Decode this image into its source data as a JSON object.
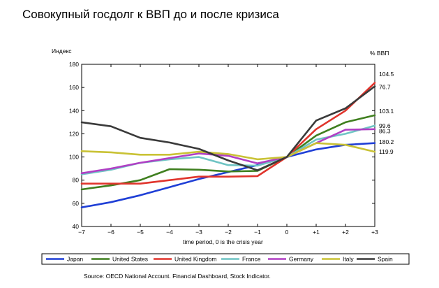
{
  "chart_data": {
    "type": "line",
    "title": "Совокупный госдолг к ВВП до и после кризиса",
    "ylabel": "Индекс",
    "right_label": "% ВВП",
    "xlabel": "time period, 0 is the crisis year",
    "source": "Source: OECD National Account.  Financial Dashboard, Stock Indicator.",
    "x": [
      -7,
      -6,
      -5,
      -4,
      -3,
      -2,
      -1,
      0,
      1,
      2,
      3
    ],
    "x_tick_labels": [
      "−7",
      "−6",
      "−5",
      "−4",
      "−3",
      "−2",
      "−1",
      "0",
      "+1",
      "+2",
      "+3"
    ],
    "ylim": [
      40,
      180
    ],
    "y_ticks": [
      40,
      60,
      80,
      100,
      120,
      140,
      160,
      180
    ],
    "grid": false,
    "legend_position": "bottom",
    "series": [
      {
        "name": "Japan",
        "color": "#1f3fd6",
        "values": [
          56.5,
          61,
          67,
          74,
          81,
          87,
          93,
          100,
          106.5,
          110.5,
          112
        ]
      },
      {
        "name": "United States",
        "color": "#3f7f1f",
        "values": [
          72,
          75.5,
          80,
          89.5,
          89,
          87.5,
          88,
          100,
          118.5,
          130,
          136
        ]
      },
      {
        "name": "United Kingdom",
        "color": "#e0342c",
        "values": [
          77,
          77,
          77,
          80,
          83,
          83,
          83.5,
          100,
          124,
          140,
          164
        ]
      },
      {
        "name": "France",
        "color": "#6fc4c4",
        "values": [
          85,
          89,
          95,
          98,
          100,
          93,
          92.5,
          100,
          115,
          120,
          127
        ]
      },
      {
        "name": "Germany",
        "color": "#b03fc4",
        "values": [
          86,
          90,
          95,
          99,
          103,
          101,
          94.5,
          100,
          112,
          123.5,
          124
        ]
      },
      {
        "name": "Italy",
        "color": "#c9c235",
        "values": [
          105,
          104,
          102,
          102,
          104.5,
          102.5,
          98,
          100,
          112,
          110.5,
          104.5
        ]
      },
      {
        "name": "Spain",
        "color": "#3a3a3a",
        "values": [
          130,
          126.5,
          116.5,
          112.5,
          107,
          97,
          88.5,
          100,
          131.5,
          142,
          161
        ]
      }
    ],
    "right_values": [
      {
        "text": "104.5",
        "y": 171.5
      },
      {
        "text": "76.7",
        "y": 160.5
      },
      {
        "text": "103.1",
        "y": 139.5
      },
      {
        "text": "99.6",
        "y": 127
      },
      {
        "text": "86.3",
        "y": 122.5
      },
      {
        "text": "180.2",
        "y": 113
      },
      {
        "text": "119.9",
        "y": 104.5
      }
    ]
  }
}
